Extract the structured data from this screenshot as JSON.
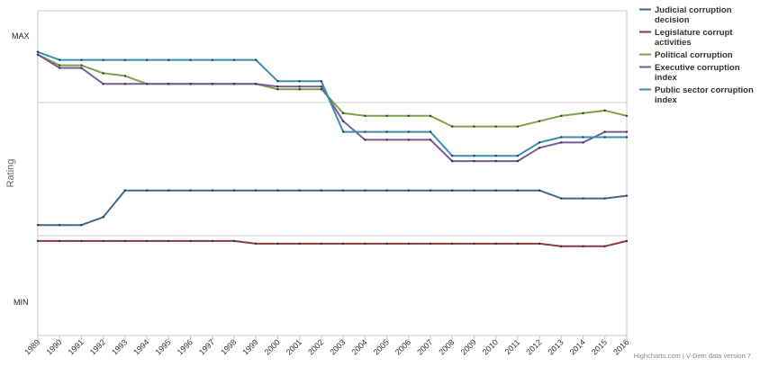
{
  "chart_data": {
    "type": "line",
    "ylabel": "Rating",
    "y_tick_labels": {
      "max": "MAX",
      "min": "MIN"
    },
    "ylim": [
      0,
      1
    ],
    "x": [
      "1989",
      "1990",
      "1991",
      "1992",
      "1993",
      "1994",
      "1995",
      "1996",
      "1997",
      "1998",
      "1999",
      "2000",
      "2001",
      "2002",
      "2003",
      "2004",
      "2005",
      "2006",
      "2007",
      "2008",
      "2009",
      "2010",
      "2011",
      "2012",
      "2013",
      "2014",
      "2015",
      "2016"
    ],
    "legend_position": "right",
    "grid": true,
    "series": [
      {
        "name": "Judicial corruption decision",
        "color": "#3d6a8f",
        "values": [
          0.29,
          0.29,
          0.29,
          0.32,
          0.42,
          0.42,
          0.42,
          0.42,
          0.42,
          0.42,
          0.42,
          0.42,
          0.42,
          0.42,
          0.42,
          0.42,
          0.42,
          0.42,
          0.42,
          0.42,
          0.42,
          0.42,
          0.42,
          0.42,
          0.39,
          0.39,
          0.39,
          0.4
        ]
      },
      {
        "name": "Legislature corrupt activities",
        "color": "#8b3a3a",
        "values": [
          0.23,
          0.23,
          0.23,
          0.23,
          0.23,
          0.23,
          0.23,
          0.23,
          0.23,
          0.23,
          0.22,
          0.22,
          0.22,
          0.22,
          0.22,
          0.22,
          0.22,
          0.22,
          0.22,
          0.22,
          0.22,
          0.22,
          0.22,
          0.22,
          0.21,
          0.21,
          0.21,
          0.23
        ]
      },
      {
        "name": "Political corruption",
        "color": "#7fa14a",
        "values": [
          0.93,
          0.89,
          0.89,
          0.86,
          0.85,
          0.82,
          0.82,
          0.82,
          0.82,
          0.82,
          0.82,
          0.8,
          0.8,
          0.8,
          0.71,
          0.7,
          0.7,
          0.7,
          0.7,
          0.66,
          0.66,
          0.66,
          0.66,
          0.68,
          0.7,
          0.71,
          0.72,
          0.7
        ]
      },
      {
        "name": "Executive corruption index",
        "color": "#7b5b95",
        "values": [
          0.93,
          0.88,
          0.88,
          0.82,
          0.82,
          0.82,
          0.82,
          0.82,
          0.82,
          0.82,
          0.82,
          0.81,
          0.81,
          0.81,
          0.68,
          0.61,
          0.61,
          0.61,
          0.61,
          0.53,
          0.53,
          0.53,
          0.53,
          0.58,
          0.6,
          0.6,
          0.64,
          0.64
        ]
      },
      {
        "name": "Public sector corruption index",
        "color": "#3a8fb0",
        "values": [
          0.94,
          0.91,
          0.91,
          0.91,
          0.91,
          0.91,
          0.91,
          0.91,
          0.91,
          0.91,
          0.91,
          0.83,
          0.83,
          0.83,
          0.64,
          0.64,
          0.64,
          0.64,
          0.64,
          0.55,
          0.55,
          0.55,
          0.55,
          0.6,
          0.62,
          0.62,
          0.62,
          0.62
        ]
      }
    ],
    "credits": "Highcharts.com | V-Dem data version 7"
  }
}
